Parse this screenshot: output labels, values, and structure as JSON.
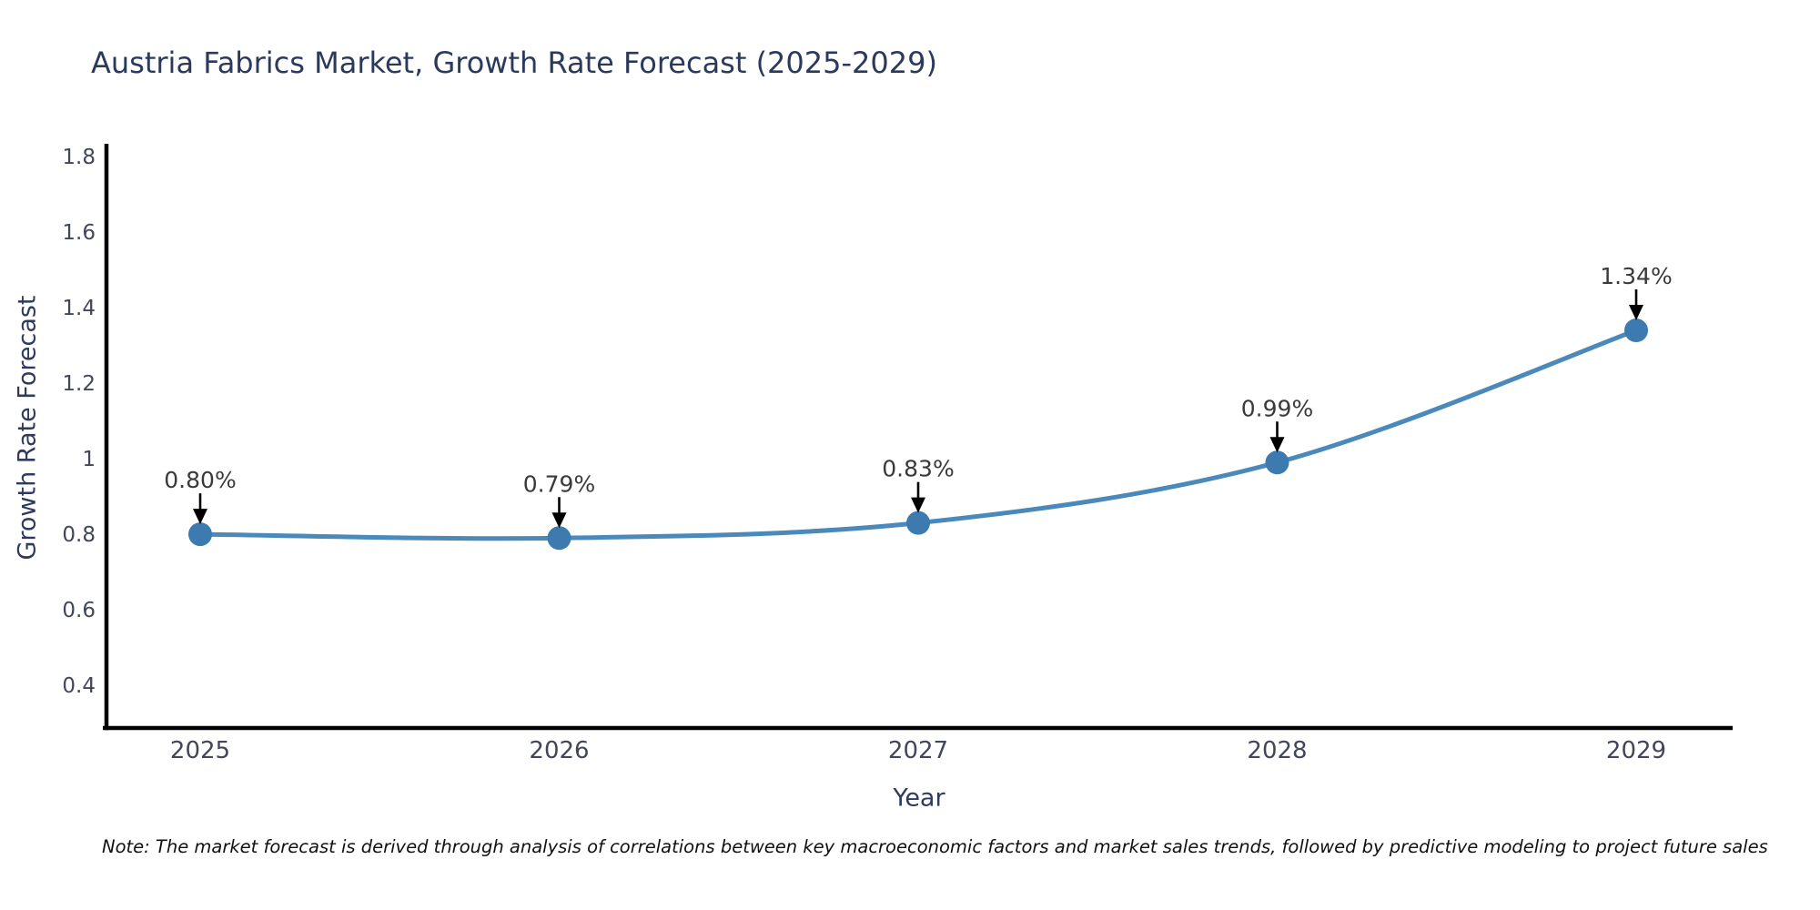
{
  "title": "Austria Fabrics Market, Growth Rate Forecast (2025-2029)",
  "note": "Note: The market forecast is derived through analysis of correlations between key macroeconomic factors and market sales trends, followed by predictive modeling to project future sales",
  "chart_data": {
    "type": "line",
    "title": "Austria Fabrics Market, Growth Rate Forecast (2025-2029)",
    "xlabel": "Year",
    "ylabel": "Growth Rate Forecast",
    "categories": [
      "2025",
      "2026",
      "2027",
      "2028",
      "2029"
    ],
    "series": [
      {
        "name": "Growth Rate Forecast",
        "values": [
          0.8,
          0.79,
          0.83,
          0.99,
          1.34
        ],
        "point_labels": [
          "0.80%",
          "0.79%",
          "0.83%",
          "0.99%",
          "1.34%"
        ]
      }
    ],
    "ylim": [
      0.287,
      1.834
    ],
    "yticks": [
      0.4,
      0.6,
      0.8,
      1,
      1.2,
      1.4,
      1.6,
      1.8
    ],
    "ytick_labels": [
      "0.4",
      "0.6",
      "0.8",
      "1",
      "1.2",
      "1.4",
      "1.6",
      "1.8"
    ],
    "grid": false,
    "legend_position": "none",
    "line_style": "smooth-spline",
    "annotations": "value labels with black down-arrows above each point"
  },
  "colors": {
    "background": "#ffffff",
    "title_text": "#2b3a5c",
    "axis_label_text": "#2e3b5e",
    "tick_text": "#42465a",
    "annotation_text": "#3a3a3a",
    "note_text": "#111111",
    "line": "#4a89ba",
    "marker": "#3d7ab0",
    "spine": "#000000",
    "arrow": "#000000"
  }
}
